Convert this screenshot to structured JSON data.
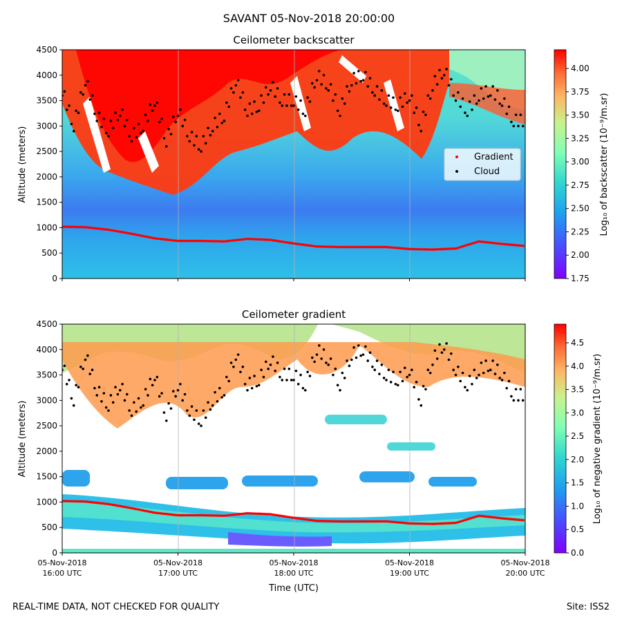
{
  "figure": {
    "title": "SAVANT 05-Nov-2018 20:00:00",
    "footer_left": "REAL-TIME DATA, NOT CHECKED FOR QUALITY",
    "footer_right": "Site: ISS2"
  },
  "chart_data": [
    {
      "type": "heatmap",
      "title": "Ceilometer backscatter",
      "xlabel": "",
      "ylabel": "Altitude (meters)",
      "ylim": [
        0,
        4500
      ],
      "yticks": [
        0,
        500,
        1000,
        1500,
        2000,
        2500,
        3000,
        3500,
        4000,
        4500
      ],
      "xticks": [],
      "colorbar": {
        "label": "Log₁₀ of backscatter (10⁻⁹/m.sr)",
        "range": [
          1.75,
          4.2
        ],
        "ticks": [
          "1.75",
          "2.00",
          "2.25",
          "2.50",
          "2.75",
          "3.00",
          "3.25",
          "3.50",
          "3.75",
          "4.00"
        ]
      },
      "legend": {
        "position": "center-right",
        "entries": [
          {
            "name": "Gradient",
            "color": "#ff0000"
          },
          {
            "name": "Cloud",
            "color": "#000000"
          }
        ]
      }
    },
    {
      "type": "heatmap",
      "title": "Ceilometer gradient",
      "xlabel": "Time (UTC)",
      "ylabel": "Altitude (meters)",
      "ylim": [
        0,
        4500
      ],
      "yticks": [
        0,
        500,
        1000,
        1500,
        2000,
        2500,
        3000,
        3500,
        4000,
        4500
      ],
      "xticks": [
        {
          "date": "05-Nov-2018",
          "time": "16:00 UTC"
        },
        {
          "date": "05-Nov-2018",
          "time": "17:00 UTC"
        },
        {
          "date": "05-Nov-2018",
          "time": "18:00 UTC"
        },
        {
          "date": "05-Nov-2018",
          "time": "19:00 UTC"
        },
        {
          "date": "05-Nov-2018",
          "time": "20:00 UTC"
        }
      ],
      "colorbar": {
        "label": "Log₁₀ of negative gradient (10⁻⁹/m.sr)",
        "range": [
          0,
          4.9
        ],
        "ticks": [
          "0.0",
          "0.5",
          "1.0",
          "1.5",
          "2.0",
          "2.5",
          "3.0",
          "3.5",
          "4.0",
          "4.5"
        ]
      }
    }
  ],
  "series": {
    "boundary_layer_gradient": {
      "name": "Gradient",
      "x_hours": [
        16.0,
        16.2,
        16.4,
        16.6,
        16.8,
        17.0,
        17.2,
        17.4,
        17.6,
        17.8,
        18.0,
        18.2,
        18.4,
        18.6,
        18.8,
        19.0,
        19.2,
        19.4,
        19.6,
        19.8,
        20.0
      ],
      "y": [
        1020,
        1010,
        960,
        880,
        790,
        740,
        740,
        730,
        780,
        760,
        690,
        630,
        620,
        620,
        620,
        580,
        570,
        590,
        730,
        680,
        640
      ]
    },
    "cloud_base": {
      "name": "Cloud",
      "x_hours": [
        16.0,
        16.1,
        16.2,
        16.3,
        16.4,
        16.5,
        16.6,
        16.7,
        16.8,
        16.9,
        17.0,
        17.1,
        17.2,
        17.3,
        17.4,
        17.5,
        17.6,
        17.7,
        17.8,
        17.9,
        18.0,
        18.1,
        18.2,
        18.3,
        18.4,
        18.5,
        18.6,
        18.7,
        18.8,
        18.9,
        19.0,
        19.1,
        19.2,
        19.3,
        19.4,
        19.5,
        19.6,
        19.7,
        19.8,
        19.9,
        20.0
      ],
      "y": [
        3700,
        3000,
        3900,
        3200,
        2900,
        3300,
        2800,
        3000,
        3500,
        2700,
        3300,
        2800,
        2600,
        3000,
        3200,
        3900,
        3300,
        3400,
        3800,
        3500,
        3500,
        3300,
        4000,
        3800,
        3300,
        3900,
        4000,
        3700,
        3500,
        3400,
        3600,
        3000,
        3800,
        4100,
        3600,
        3300,
        3600,
        3700,
        3500,
        3100,
        3100
      ]
    }
  }
}
